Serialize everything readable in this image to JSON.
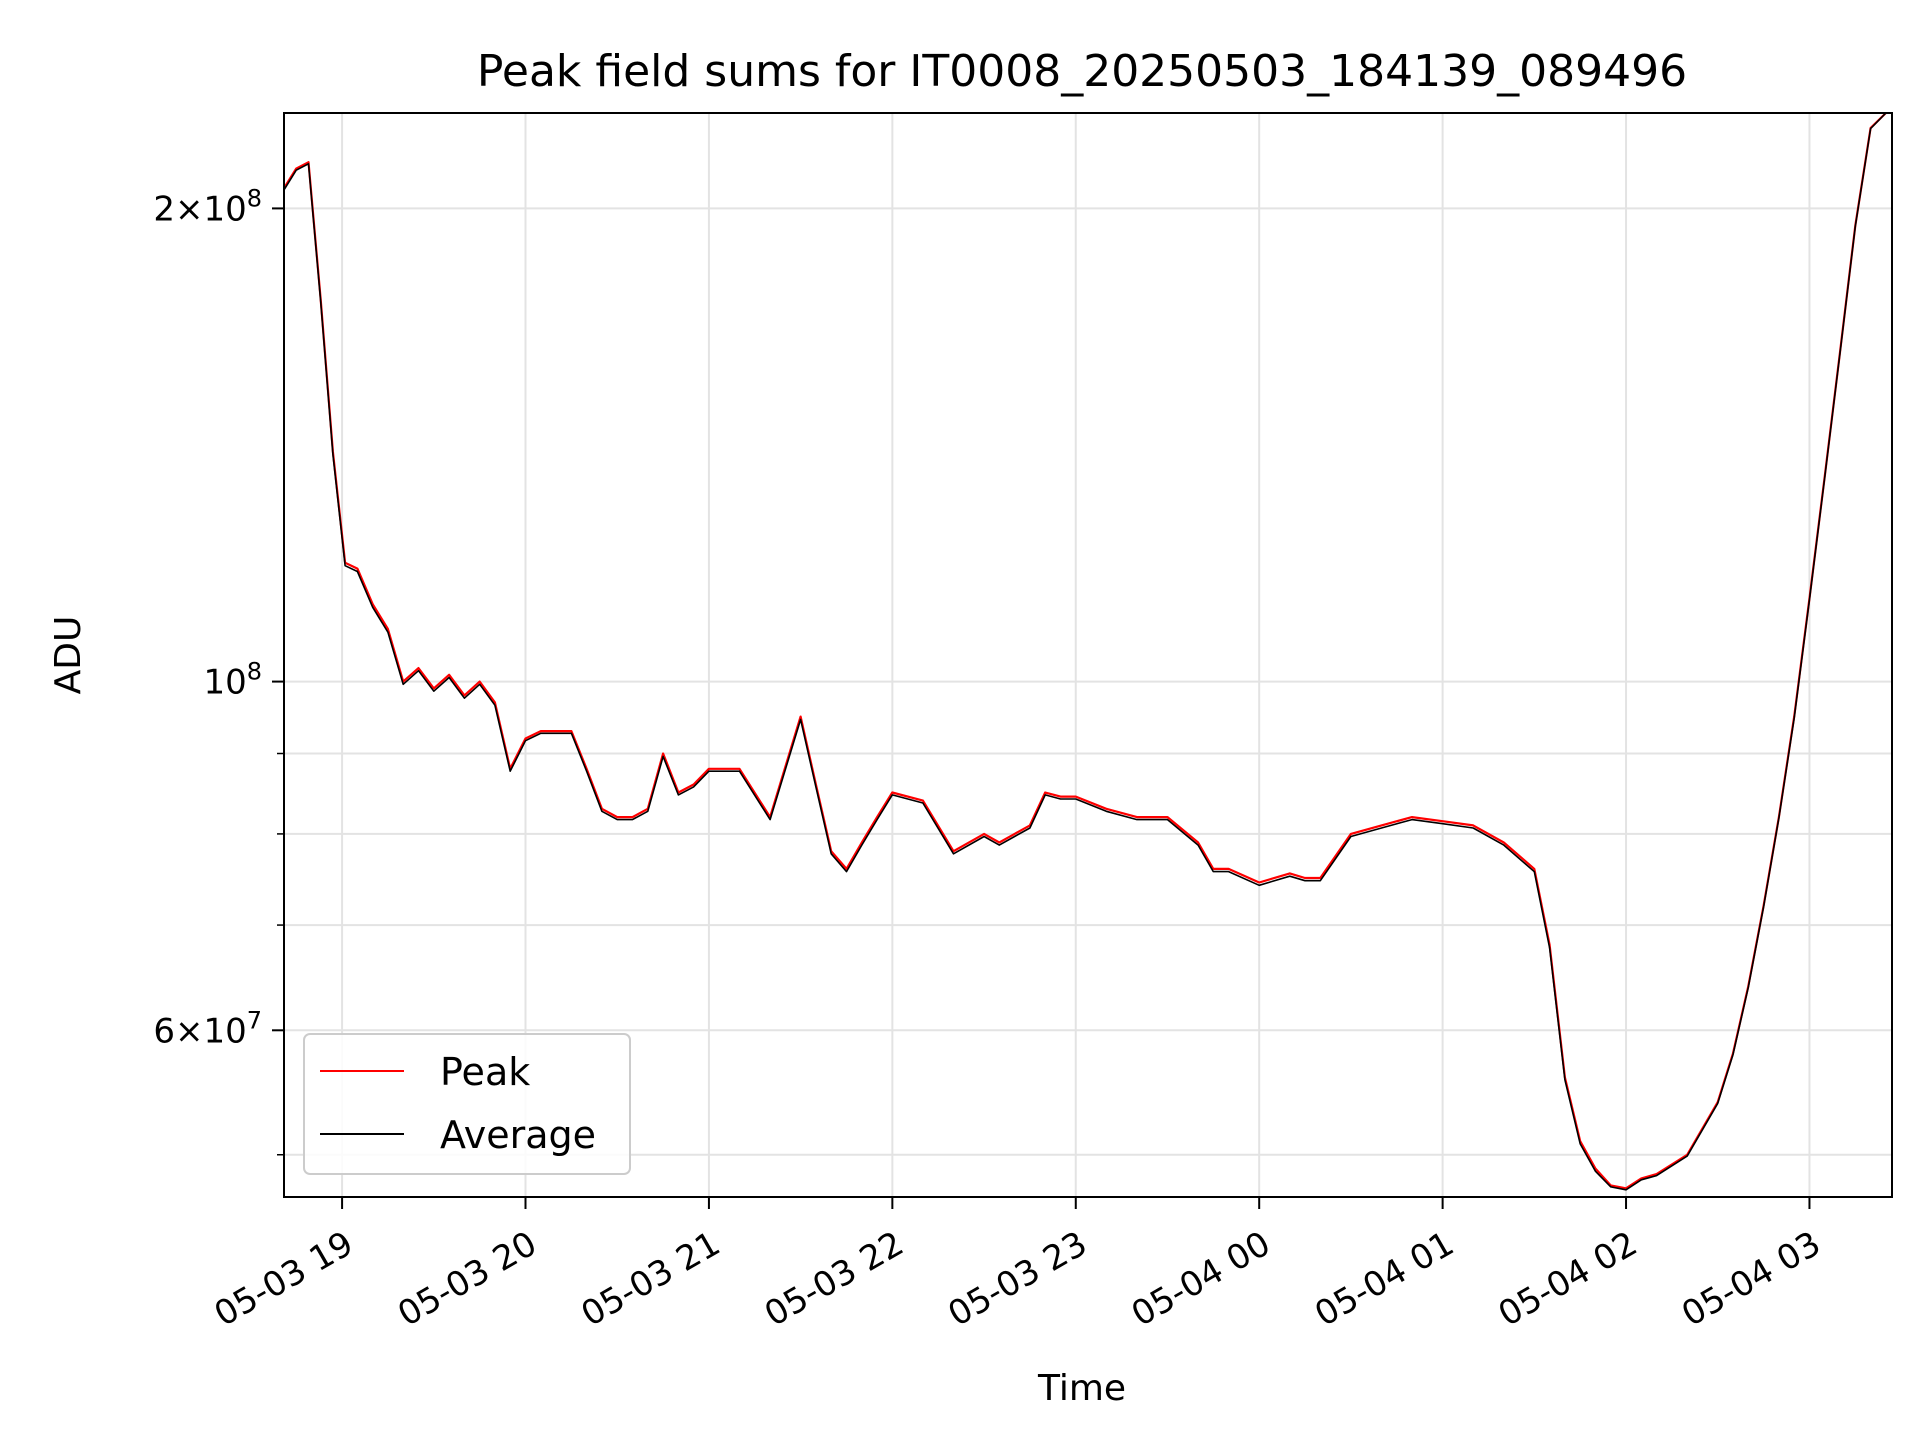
{
  "chart_data": {
    "type": "line",
    "title": "Peak field sums for IT0008_20250503_184139_089496",
    "xlabel": "Time",
    "ylabel": "ADU",
    "yscale": "log",
    "ylim": [
      47000000,
      230000000
    ],
    "xlim": [
      "05-03 18:41",
      "05-04 03:27"
    ],
    "grid": true,
    "legend_position": "lower-left",
    "x_ticks": [
      "05-03 19",
      "05-03 20",
      "05-03 21",
      "05-03 22",
      "05-03 23",
      "05-04 00",
      "05-04 01",
      "05-04 02",
      "05-04 03"
    ],
    "y_ticks": [
      {
        "value": 200000000,
        "mantissa": "2",
        "exp": "8"
      },
      {
        "value": 100000000,
        "mantissa": "",
        "exp": "8"
      },
      {
        "value": 60000000,
        "mantissa": "6",
        "exp": "7"
      }
    ],
    "x": [
      "05-03 18:41",
      "05-03 18:45",
      "05-03 18:49",
      "05-03 18:53",
      "05-03 18:57",
      "05-03 19:01",
      "05-03 19:05",
      "05-03 19:10",
      "05-03 19:15",
      "05-03 19:20",
      "05-03 19:25",
      "05-03 19:30",
      "05-03 19:35",
      "05-03 19:40",
      "05-03 19:45",
      "05-03 19:50",
      "05-03 19:55",
      "05-03 20:00",
      "05-03 20:05",
      "05-03 20:15",
      "05-03 20:20",
      "05-03 20:25",
      "05-03 20:30",
      "05-03 20:35",
      "05-03 20:40",
      "05-03 20:45",
      "05-03 20:50",
      "05-03 20:55",
      "05-03 21:00",
      "05-03 21:10",
      "05-03 21:20",
      "05-03 21:30",
      "05-03 21:35",
      "05-03 21:40",
      "05-03 21:45",
      "05-03 21:50",
      "05-03 21:55",
      "05-03 22:00",
      "05-03 22:10",
      "05-03 22:20",
      "05-03 22:30",
      "05-03 22:35",
      "05-03 22:40",
      "05-03 22:45",
      "05-03 22:50",
      "05-03 22:55",
      "05-03 23:00",
      "05-03 23:10",
      "05-03 23:20",
      "05-03 23:30",
      "05-03 23:40",
      "05-03 23:45",
      "05-03 23:50",
      "05-04 00:00",
      "05-04 00:10",
      "05-04 00:15",
      "05-04 00:20",
      "05-04 00:30",
      "05-04 00:40",
      "05-04 00:50",
      "05-04 01:00",
      "05-04 01:10",
      "05-04 01:20",
      "05-04 01:30",
      "05-04 01:35",
      "05-04 01:40",
      "05-04 01:45",
      "05-04 01:50",
      "05-04 01:55",
      "05-04 02:00",
      "05-04 02:05",
      "05-04 02:10",
      "05-04 02:20",
      "05-04 02:30",
      "05-04 02:35",
      "05-04 02:40",
      "05-04 02:45",
      "05-04 02:50",
      "05-04 02:55",
      "05-04 03:00",
      "05-04 03:05",
      "05-04 03:10",
      "05-04 03:15",
      "05-04 03:20",
      "05-04 03:25"
    ],
    "series": [
      {
        "name": "Peak",
        "color": "#ff0000",
        "values": [
          206000000,
          212000000,
          214000000,
          175000000,
          140000000,
          119000000,
          118000000,
          112000000,
          108000000,
          100000000,
          102000000,
          99000000,
          101000000,
          98000000,
          100000000,
          97000000,
          88000000,
          92000000,
          93000000,
          93000000,
          88000000,
          83000000,
          82000000,
          82000000,
          83000000,
          90000000,
          85000000,
          86000000,
          88000000,
          88000000,
          82000000,
          95000000,
          86000000,
          78000000,
          76000000,
          79000000,
          82000000,
          85000000,
          84000000,
          78000000,
          80000000,
          79000000,
          80000000,
          81000000,
          85000000,
          84500000,
          84500000,
          83000000,
          82000000,
          82000000,
          79000000,
          76000000,
          76000000,
          74500000,
          75500000,
          75000000,
          75000000,
          80000000,
          81000000,
          82000000,
          81500000,
          81000000,
          79000000,
          76000000,
          68000000,
          56000000,
          51000000,
          49000000,
          47800000,
          47600000,
          48300000,
          48600000,
          50000000,
          54000000,
          58000000,
          64000000,
          72000000,
          82000000,
          95000000,
          113000000,
          135000000,
          162000000,
          195000000,
          225000000,
          230000000
        ]
      },
      {
        "name": "Average",
        "color": "#000000",
        "values": [
          205500000,
          211500000,
          213500000,
          174500000,
          139500000,
          118500000,
          117500000,
          111500000,
          107500000,
          99600000,
          101600000,
          98600000,
          100600000,
          97600000,
          99600000,
          96600000,
          87700000,
          91700000,
          92700000,
          92700000,
          87700000,
          82700000,
          81700000,
          81700000,
          82700000,
          89600000,
          84700000,
          85700000,
          87700000,
          87700000,
          81700000,
          94600000,
          85700000,
          77700000,
          75700000,
          78700000,
          81700000,
          84700000,
          83700000,
          77700000,
          79700000,
          78700000,
          79700000,
          80700000,
          84700000,
          84200000,
          84200000,
          82700000,
          81700000,
          81700000,
          78700000,
          75700000,
          75700000,
          74200000,
          75200000,
          74700000,
          74700000,
          79700000,
          80700000,
          81700000,
          81200000,
          80700000,
          78700000,
          75700000,
          67700000,
          55800000,
          50800000,
          48800000,
          47700000,
          47500000,
          48200000,
          48500000,
          49900000,
          53900000,
          57900000,
          63900000,
          71900000,
          81900000,
          94800000,
          112800000,
          134800000,
          161800000,
          194800000,
          224800000,
          230000000
        ]
      }
    ]
  }
}
